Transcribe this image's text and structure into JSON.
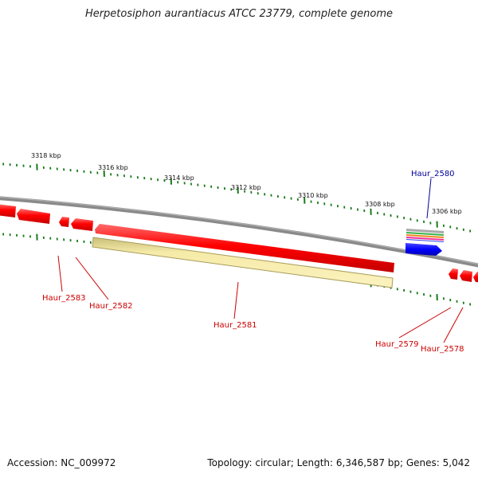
{
  "title": "Herpetosiphon aurantiacus ATCC 23779, complete genome",
  "footer": {
    "accession": "Accession: NC_009972",
    "summary": "Topology: circular; Length: 6,346,587 bp; Genes: 5,042"
  },
  "colors": {
    "backbone": "#808080",
    "gene": "#ff0000",
    "pseudo": "#f2e39a",
    "rna": "#0000ff",
    "tick": "#1a7a1a",
    "label_red": "#cc0000",
    "label_blue": "#000099"
  },
  "ticks": {
    "labels": [
      "3318 kbp",
      "3316 kbp",
      "3314 kbp",
      "3312 kbp",
      "3310 kbp",
      "3308 kbp",
      "3306 kbp"
    ]
  },
  "genes": [
    {
      "label": "Haur_2583",
      "color": "label_red"
    },
    {
      "label": "Haur_2582",
      "color": "label_red"
    },
    {
      "label": "Haur_2581",
      "color": "label_red"
    },
    {
      "label": "Haur_2580",
      "color": "label_blue"
    },
    {
      "label": "Haur_2579",
      "color": "label_red"
    },
    {
      "label": "Haur_2578",
      "color": "label_red"
    }
  ]
}
